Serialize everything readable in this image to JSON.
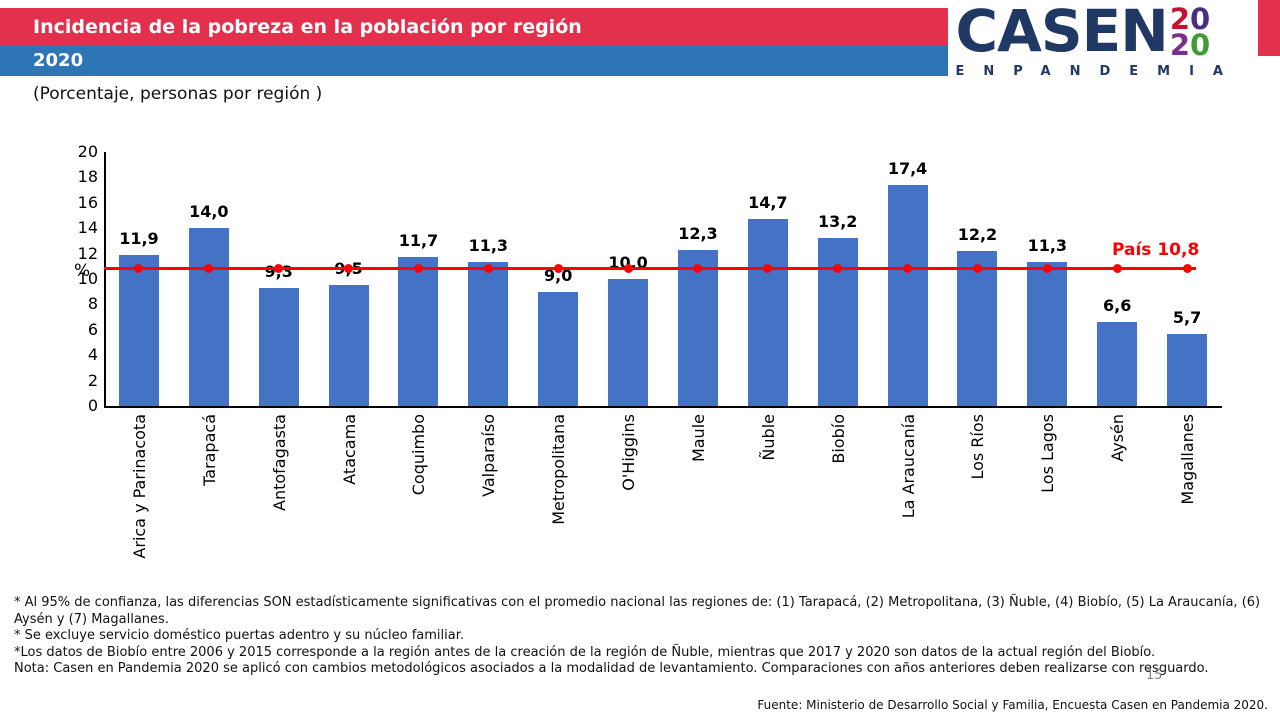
{
  "header": {
    "title": "Incidencia de la pobreza en la población por región",
    "year": "2020",
    "band_red_color": "#E3304C",
    "band_blue_color": "#2E75B6"
  },
  "logo": {
    "name": "CASEN",
    "tagline": "ENPANDEMIA",
    "navy_color": "#1F3864",
    "year_rows": [
      {
        "digits": "20",
        "colors": [
          "#C8102E",
          "#4B2E83"
        ]
      },
      {
        "digits": "20",
        "colors": [
          "#7B2E8E",
          "#3F9C35"
        ]
      }
    ]
  },
  "subtitle": "(Porcentaje, personas por región )",
  "chart_data": {
    "type": "bar",
    "title": "Incidencia de la pobreza en la población por región 2020",
    "xlabel": "",
    "ylabel": "%",
    "ylim": [
      0,
      20
    ],
    "ytick_step": 2,
    "grid": false,
    "legend": false,
    "bar_color": "#4472C4",
    "categories": [
      "Arica y Parinacota",
      "Tarapacá",
      "Antofagasta",
      "Atacama",
      "Coquimbo",
      "Valparaíso",
      "Metropolitana",
      "O'Higgins",
      "Maule",
      "Ñuble",
      "Biobío",
      "La Araucanía",
      "Los Ríos",
      "Los Lagos",
      "Aysén",
      "Magallanes"
    ],
    "values": [
      11.9,
      14.0,
      9.3,
      9.5,
      11.7,
      11.3,
      9.0,
      10.0,
      12.3,
      14.7,
      13.2,
      17.4,
      12.2,
      11.3,
      6.6,
      5.7
    ],
    "value_labels": [
      "11,9",
      "14,0",
      "9,3",
      "9,5",
      "11,7",
      "11,3",
      "9,0",
      "10,0",
      "12,3",
      "14,7",
      "13,2",
      "17,4",
      "12,2",
      "11,3",
      "6,6",
      "5,7"
    ],
    "reference_line": {
      "value": 10.8,
      "label": "País 10,8",
      "color": "#FF0000"
    }
  },
  "footnotes": [
    "* Al 95% de confianza, las diferencias SON estadísticamente significativas con el promedio nacional las regiones de: (1) Tarapacá, (2) Metropolitana, (3) Ñuble, (4) Biobío, (5) La Araucanía, (6) Aysén y (7) Magallanes.",
    "* Se excluye servicio doméstico puertas adentro y su núcleo familiar.",
    "*Los datos de Biobío entre 2006 y 2015 corresponde a la región antes de la creación de la región de Ñuble, mientras que 2017 y 2020 son datos de la actual región del Biobío.",
    "Nota: Casen en Pandemia 2020 se aplicó con cambios metodológicos asociados a la modalidad de levantamiento. Comparaciones con años anteriores deben realizarse con resguardo."
  ],
  "page_number": "15",
  "source": "Fuente: Ministerio de Desarrollo Social y Familia, Encuesta Casen en Pandemia 2020."
}
